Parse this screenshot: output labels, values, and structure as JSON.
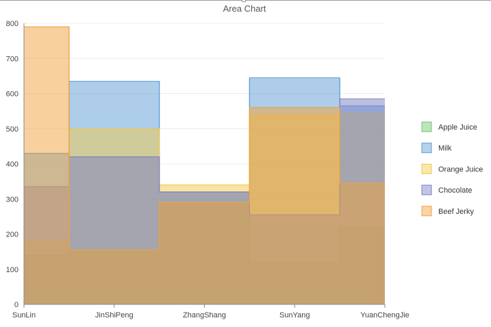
{
  "chart_data": {
    "type": "area",
    "step": true,
    "title": "Area Chart",
    "xlabel": "",
    "ylabel": "",
    "categories": [
      "SunLin",
      "JinShiPeng",
      "ZhangShang",
      "SunYang",
      "YuanChengJie"
    ],
    "ylim": [
      0,
      800
    ],
    "yticks": [
      0,
      100,
      200,
      300,
      400,
      500,
      600,
      700,
      800
    ],
    "grid": true,
    "legend_position": "right",
    "series": [
      {
        "name": "Apple Juice",
        "color": "#6cc56c",
        "values": [
          140,
          155,
          285,
          120,
          220
        ]
      },
      {
        "name": "Milk",
        "color": "#5b9bd5",
        "values": [
          430,
          635,
          320,
          645,
          565
        ]
      },
      {
        "name": "Orange Juice",
        "color": "#f2c94c",
        "values": [
          180,
          500,
          340,
          540,
          545
        ]
      },
      {
        "name": "Chocolate",
        "color": "#7b7fc4",
        "values": [
          335,
          420,
          320,
          255,
          585
        ]
      },
      {
        "name": "Beef Jerky",
        "color": "#f0a23c",
        "values": [
          790,
          155,
          290,
          560,
          345
        ]
      }
    ]
  }
}
